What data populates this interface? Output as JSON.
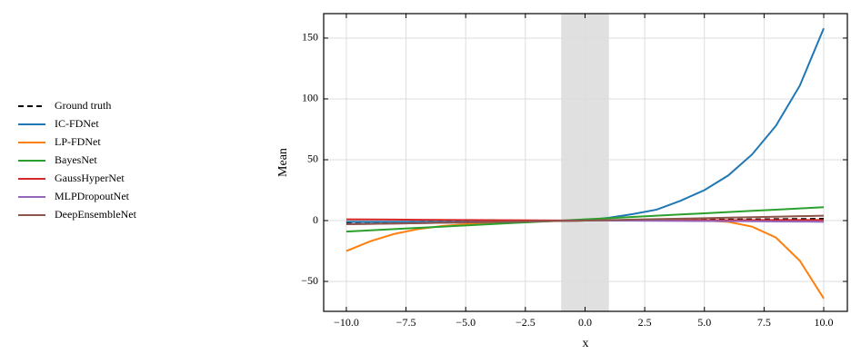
{
  "chart_data": {
    "type": "line",
    "xlabel": "x",
    "ylabel": "Mean",
    "x": [
      -10,
      -9,
      -8,
      -7,
      -6,
      -5,
      -4,
      -3,
      -2,
      -1,
      0,
      1,
      2,
      3,
      4,
      5,
      6,
      7,
      8,
      9,
      10
    ],
    "shaded_region": [
      -1,
      1
    ],
    "xlim": [
      -10.95,
      10.99
    ],
    "ylim": [
      -74.6,
      170.1
    ],
    "xticks": [
      {
        "value": -10,
        "label": "−10.0"
      },
      {
        "value": -7.5,
        "label": "−7.5"
      },
      {
        "value": -5,
        "label": "−5.0"
      },
      {
        "value": -2.5,
        "label": "−2.5"
      },
      {
        "value": 0,
        "label": "0.0"
      },
      {
        "value": 2.5,
        "label": "2.5"
      },
      {
        "value": 5,
        "label": "5.0"
      },
      {
        "value": 7.5,
        "label": "7.5"
      },
      {
        "value": 10,
        "label": "10.0"
      }
    ],
    "yticks": [
      {
        "value": -50,
        "label": "−50"
      },
      0,
      50,
      100,
      150
    ],
    "grid": true,
    "legend": "outside-left",
    "series": [
      {
        "name": "Ground truth",
        "color": "#000000",
        "linestyle": "dashed",
        "values": [
          -1.5,
          -1.3,
          -1.2,
          -1,
          -0.9,
          -0.7,
          -0.6,
          -0.4,
          -0.3,
          -0.1,
          0,
          0.1,
          0.3,
          0.4,
          0.6,
          0.7,
          0.9,
          1,
          1.2,
          1.3,
          1.5
        ]
      },
      {
        "name": "IC-FDNet",
        "color": "#1f77b4",
        "linestyle": "solid",
        "values": [
          -1,
          -1,
          -1,
          -1,
          -1,
          -1,
          -0.8,
          -0.6,
          -0.4,
          -0.2,
          0,
          2.3,
          5.3,
          9,
          16.3,
          25,
          37.1,
          54.4,
          78,
          111,
          158
        ]
      },
      {
        "name": "LP-FDNet",
        "color": "#ff7f0e",
        "linestyle": "solid",
        "values": [
          -25,
          -17,
          -11,
          -7,
          -4.5,
          -3,
          -2,
          -1.2,
          -0.7,
          -0.3,
          0,
          0.3,
          0.5,
          0.5,
          0.3,
          0,
          -1,
          -5,
          -14,
          -33,
          -64
        ]
      },
      {
        "name": "BayesNet",
        "color": "#2ca02c",
        "linestyle": "solid",
        "values": [
          -9,
          -8,
          -7,
          -6,
          -5,
          -4,
          -3,
          -2,
          -1,
          0,
          1,
          2,
          3,
          4,
          5,
          6,
          7,
          8,
          9,
          10,
          11
        ]
      },
      {
        "name": "GaussHyperNet",
        "color": "#d62728",
        "linestyle": "solid",
        "values": [
          1,
          0.9,
          0.8,
          0.7,
          0.6,
          0.5,
          0.4,
          0.3,
          0.2,
          0.1,
          0,
          0.1,
          0.2,
          0.2,
          0.3,
          0.3,
          0.4,
          0.4,
          0.5,
          0.5,
          0.5
        ]
      },
      {
        "name": "MLPDropoutNet",
        "color": "#9467bd",
        "linestyle": "solid",
        "values": [
          -3,
          -2.7,
          -2.4,
          -2.1,
          -1.8,
          -1.5,
          -1.2,
          -0.9,
          -0.6,
          -0.3,
          0,
          0,
          -0.1,
          -0.2,
          -0.3,
          -0.4,
          -0.5,
          -0.6,
          -0.7,
          -0.8,
          -1
        ]
      },
      {
        "name": "DeepEnsembleNet",
        "color": "#8c564b",
        "linestyle": "solid",
        "values": [
          -3,
          -2.7,
          -2.4,
          -2.1,
          -1.8,
          -1.5,
          -1.2,
          -0.9,
          -0.6,
          -0.3,
          0,
          0.4,
          0.8,
          1.2,
          1.6,
          2,
          2.4,
          2.8,
          3.2,
          3.6,
          4
        ]
      }
    ]
  }
}
